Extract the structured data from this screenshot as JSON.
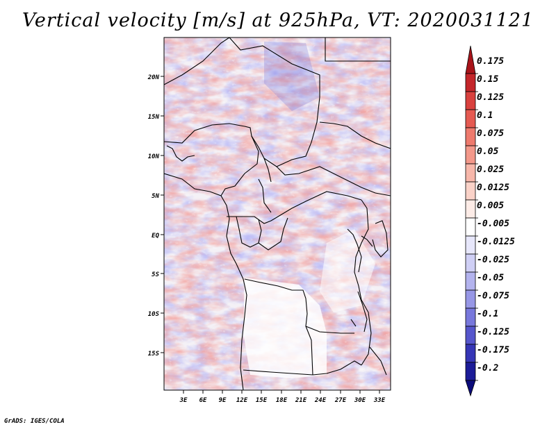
{
  "title": "Vertical velocity [m/s] at 925hPa, VT: 2020031121",
  "footer": "GrADS: IGES/COLA",
  "map": {
    "lat_labels": [
      "20N",
      "15N",
      "10N",
      "5N",
      "EQ",
      "5S",
      "10S",
      "15S"
    ],
    "lon_labels": [
      "3E",
      "6E",
      "9E",
      "12E",
      "15E",
      "18E",
      "21E",
      "24E",
      "27E",
      "30E",
      "33E"
    ]
  },
  "colorbar": {
    "labels": [
      "0.175",
      "0.15",
      "0.125",
      "0.1",
      "0.075",
      "0.05",
      "0.025",
      "0.0125",
      "0.005",
      "-0.005",
      "-0.0125",
      "-0.025",
      "-0.05",
      "-0.075",
      "-0.1",
      "-0.125",
      "-0.175",
      "-0.2"
    ],
    "colors": [
      "#a8141a",
      "#c4262a",
      "#d9413e",
      "#e55a52",
      "#ee7a6d",
      "#f3988a",
      "#f7b7aa",
      "#fad2c8",
      "#fdece7",
      "#ffffff",
      "#e7e7fb",
      "#cfcff5",
      "#b3b3ee",
      "#9797e6",
      "#7878dc",
      "#5656cc",
      "#3636b6",
      "#1c1c98",
      "#0b0b7a"
    ]
  }
}
